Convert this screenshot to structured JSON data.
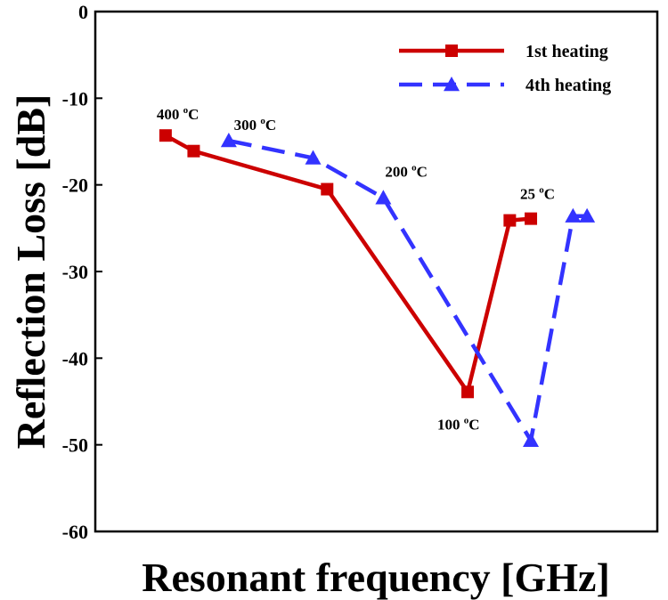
{
  "chart_data": {
    "type": "line",
    "title": "",
    "xlabel": "Resonant frequency [GHz]",
    "ylabel": "Reflection Loss [dB]",
    "ylim": [
      -60,
      0
    ],
    "yticks": [
      0,
      -10,
      -20,
      -30,
      -40,
      -50,
      -60
    ],
    "x_ticks_shown": false,
    "grid": false,
    "legend_position": "top-right",
    "series": [
      {
        "name": "1st heating",
        "color": "#cc0000",
        "line_style": "solid",
        "marker": "square",
        "points": [
          {
            "x": 1.0,
            "y": -14.3
          },
          {
            "x": 1.4,
            "y": -16.1
          },
          {
            "x": 3.3,
            "y": -20.5
          },
          {
            "x": 5.3,
            "y": -43.9
          },
          {
            "x": 5.9,
            "y": -24.1
          },
          {
            "x": 6.2,
            "y": -23.9
          }
        ]
      },
      {
        "name": "4th heating",
        "color": "#3333ff",
        "line_style": "dashed",
        "marker": "triangle",
        "points": [
          {
            "x": 1.9,
            "y": -14.9
          },
          {
            "x": 3.1,
            "y": -16.9
          },
          {
            "x": 4.1,
            "y": -21.5
          },
          {
            "x": 6.2,
            "y": -49.5
          },
          {
            "x": 6.8,
            "y": -23.6
          },
          {
            "x": 7.0,
            "y": -23.6
          }
        ]
      }
    ],
    "annotations": [
      {
        "text": "400 ",
        "sup": "o",
        "unit": "C",
        "x": 1.0,
        "y": -14.3
      },
      {
        "text": "300 ",
        "sup": "o",
        "unit": "C",
        "x": 2.1,
        "y": -14.9
      },
      {
        "text": "200 ",
        "sup": "o",
        "unit": "C",
        "x": 4.1,
        "y": -21.5
      },
      {
        "text": "100 ",
        "sup": "o",
        "unit": "C",
        "x": 5.3,
        "y": -43.9
      },
      {
        "text": "25 ",
        "sup": "o",
        "unit": "C",
        "x": 6.2,
        "y": -23.9
      }
    ]
  }
}
